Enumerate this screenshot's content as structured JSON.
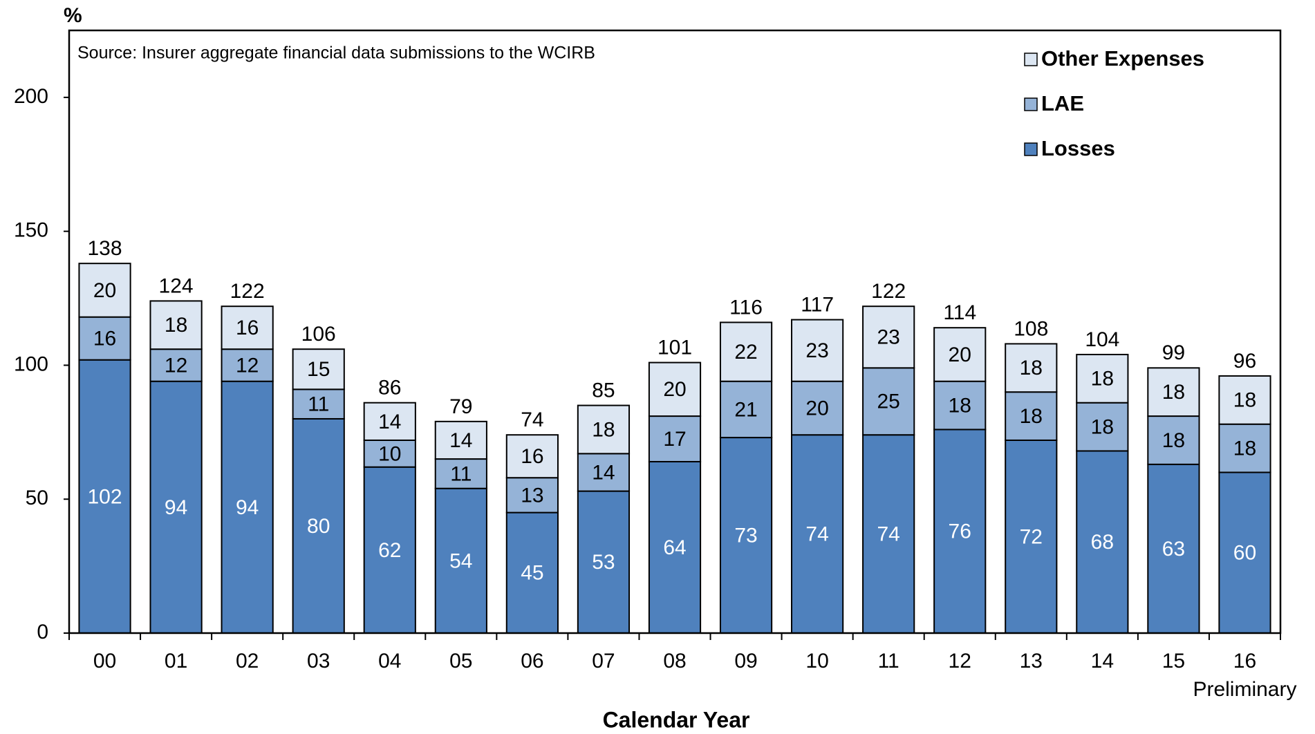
{
  "chart_data": {
    "type": "stacked_bar",
    "y_label": "%",
    "subtitle": "Source: Insurer aggregate financial data submissions to the WCIRB",
    "x_label": "Calendar Year",
    "categories": [
      "00",
      "01",
      "02",
      "03",
      "04",
      "05",
      "06",
      "07",
      "08",
      "09",
      "10",
      "11",
      "12",
      "13",
      "14",
      "15",
      "16"
    ],
    "category_note": "Preliminary",
    "series": [
      {
        "name": "Losses",
        "color": "#4f81bd",
        "label_color": "#ffffff",
        "values": [
          102,
          94,
          94,
          80,
          62,
          54,
          45,
          53,
          64,
          73,
          74,
          74,
          76,
          72,
          68,
          63,
          60
        ]
      },
      {
        "name": "LAE",
        "color": "#95b3d7",
        "label_color": "#000000",
        "values": [
          16,
          12,
          12,
          11,
          10,
          11,
          13,
          14,
          17,
          21,
          20,
          25,
          18,
          18,
          18,
          18,
          18
        ]
      },
      {
        "name": "Other Expenses",
        "color": "#dce6f2",
        "label_color": "#000000",
        "values": [
          20,
          18,
          16,
          15,
          14,
          14,
          16,
          18,
          20,
          22,
          23,
          23,
          20,
          18,
          18,
          18,
          18
        ]
      }
    ],
    "totals": [
      138,
      124,
      122,
      106,
      86,
      79,
      74,
      85,
      101,
      116,
      117,
      122,
      114,
      108,
      104,
      99,
      96
    ],
    "ylim": [
      0,
      225
    ],
    "yticks": [
      0,
      50,
      100,
      150,
      200
    ],
    "grid": false,
    "legend": "upper right"
  }
}
